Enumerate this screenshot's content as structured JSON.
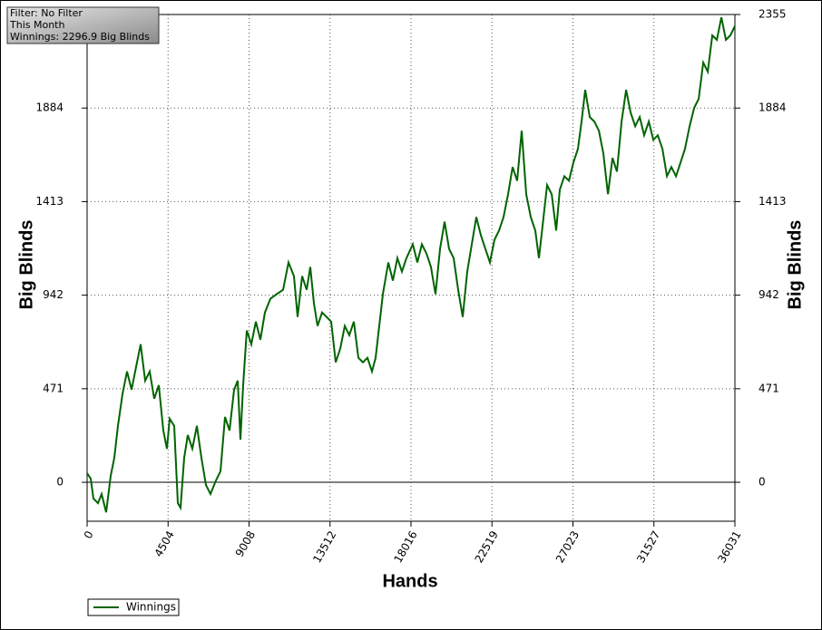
{
  "chart_data": {
    "type": "line",
    "annotations": [
      "Filter: No Filter",
      "This Month",
      "Winnings: 2296.9 Big Blinds"
    ],
    "x_label": "Hands",
    "y_label": "Big Blinds",
    "xlim": [
      0,
      36031
    ],
    "xticks": [
      0,
      4504,
      9008,
      13512,
      18016,
      22519,
      27023,
      31527,
      36031
    ],
    "ylim": [
      -196,
      2355
    ],
    "yticks": [
      0,
      471,
      942,
      1413,
      1884,
      2355
    ],
    "grid": true,
    "legend": "bottom-left",
    "series": [
      {
        "name": "Winnings",
        "color": "#006400",
        "x": [
          0,
          202,
          353,
          605,
          807,
          1060,
          1312,
          1514,
          1716,
          1968,
          2220,
          2473,
          2725,
          2977,
          3230,
          3482,
          3734,
          3987,
          4239,
          4441,
          4592,
          4844,
          5046,
          5198,
          5400,
          5602,
          5854,
          6107,
          6359,
          6611,
          6864,
          7166,
          7419,
          7671,
          7923,
          8176,
          8377,
          8529,
          8680,
          8882,
          9134,
          9387,
          9639,
          9891,
          10194,
          10547,
          10900,
          11203,
          11506,
          11708,
          11960,
          12212,
          12414,
          12616,
          12818,
          13071,
          13323,
          13575,
          13827,
          14080,
          14332,
          14584,
          14837,
          15089,
          15341,
          15594,
          15846,
          16048,
          16250,
          16452,
          16755,
          17007,
          17260,
          17512,
          17764,
          18118,
          18370,
          18622,
          18874,
          19127,
          19379,
          19631,
          19884,
          20136,
          20389,
          20641,
          20893,
          21146,
          21398,
          21650,
          21903,
          22155,
          22407,
          22660,
          22912,
          23164,
          23417,
          23669,
          23921,
          24174,
          24426,
          24678,
          24931,
          25133,
          25335,
          25587,
          25840,
          26092,
          26294,
          26546,
          26799,
          27051,
          27303,
          27505,
          27707,
          27959,
          28212,
          28464,
          28716,
          28969,
          29221,
          29473,
          29726,
          29978,
          30230,
          30483,
          30735,
          30987,
          31240,
          31492,
          31744,
          31997,
          32249,
          32501,
          32754,
          33006,
          33258,
          33511,
          33763,
          34015,
          34268,
          34520,
          34772,
          35025,
          35277,
          35529,
          35781,
          36031
        ],
        "values": [
          46,
          18,
          -82,
          -105,
          -59,
          -151,
          32,
          123,
          284,
          444,
          558,
          466,
          581,
          695,
          512,
          558,
          421,
          489,
          261,
          169,
          320,
          284,
          -105,
          -128,
          123,
          238,
          169,
          284,
          123,
          -14,
          -59,
          9,
          55,
          329,
          261,
          466,
          512,
          215,
          489,
          764,
          695,
          809,
          718,
          855,
          924,
          947,
          969,
          1107,
          1038,
          832,
          1038,
          969,
          1084,
          901,
          787,
          855,
          832,
          809,
          604,
          672,
          787,
          741,
          809,
          627,
          604,
          627,
          558,
          627,
          787,
          947,
          1107,
          1015,
          1129,
          1061,
          1129,
          1198,
          1107,
          1198,
          1152,
          1084,
          947,
          1175,
          1312,
          1175,
          1129,
          969,
          832,
          1061,
          1198,
          1335,
          1244,
          1175,
          1107,
          1221,
          1267,
          1335,
          1450,
          1587,
          1518,
          1770,
          1450,
          1335,
          1267,
          1129,
          1290,
          1496,
          1450,
          1267,
          1473,
          1541,
          1518,
          1610,
          1679,
          1816,
          1976,
          1839,
          1816,
          1770,
          1656,
          1450,
          1633,
          1564,
          1816,
          1976,
          1862,
          1793,
          1839,
          1747,
          1816,
          1724,
          1747,
          1679,
          1541,
          1587,
          1541,
          1610,
          1679,
          1793,
          1885,
          1930,
          2113,
          2067,
          2250,
          2227,
          2341,
          2227,
          2250,
          2297
        ]
      }
    ]
  }
}
